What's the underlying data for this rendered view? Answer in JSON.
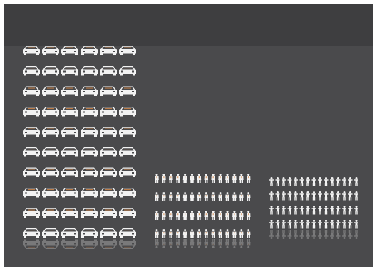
{
  "colors": {
    "background": "#4a4a4c",
    "header_band": "#3e3e40",
    "icon": "#f2f2f2",
    "icon_detail": "#4a4a4c",
    "accent": "#d88a4a"
  },
  "chart_data": {
    "type": "pictograph",
    "categories": [],
    "series": [
      {
        "icon": "car-icon",
        "columns": 6,
        "rows": 10,
        "count": 60
      },
      {
        "icon": "commuter-icon",
        "columns": 14,
        "rows": 4,
        "count": 56
      },
      {
        "icon": "cyclist-icon",
        "columns": 15,
        "rows": 4,
        "count": 60
      }
    ],
    "title": "",
    "xlabel": "",
    "ylabel": "",
    "legend": "none",
    "grid": false
  }
}
